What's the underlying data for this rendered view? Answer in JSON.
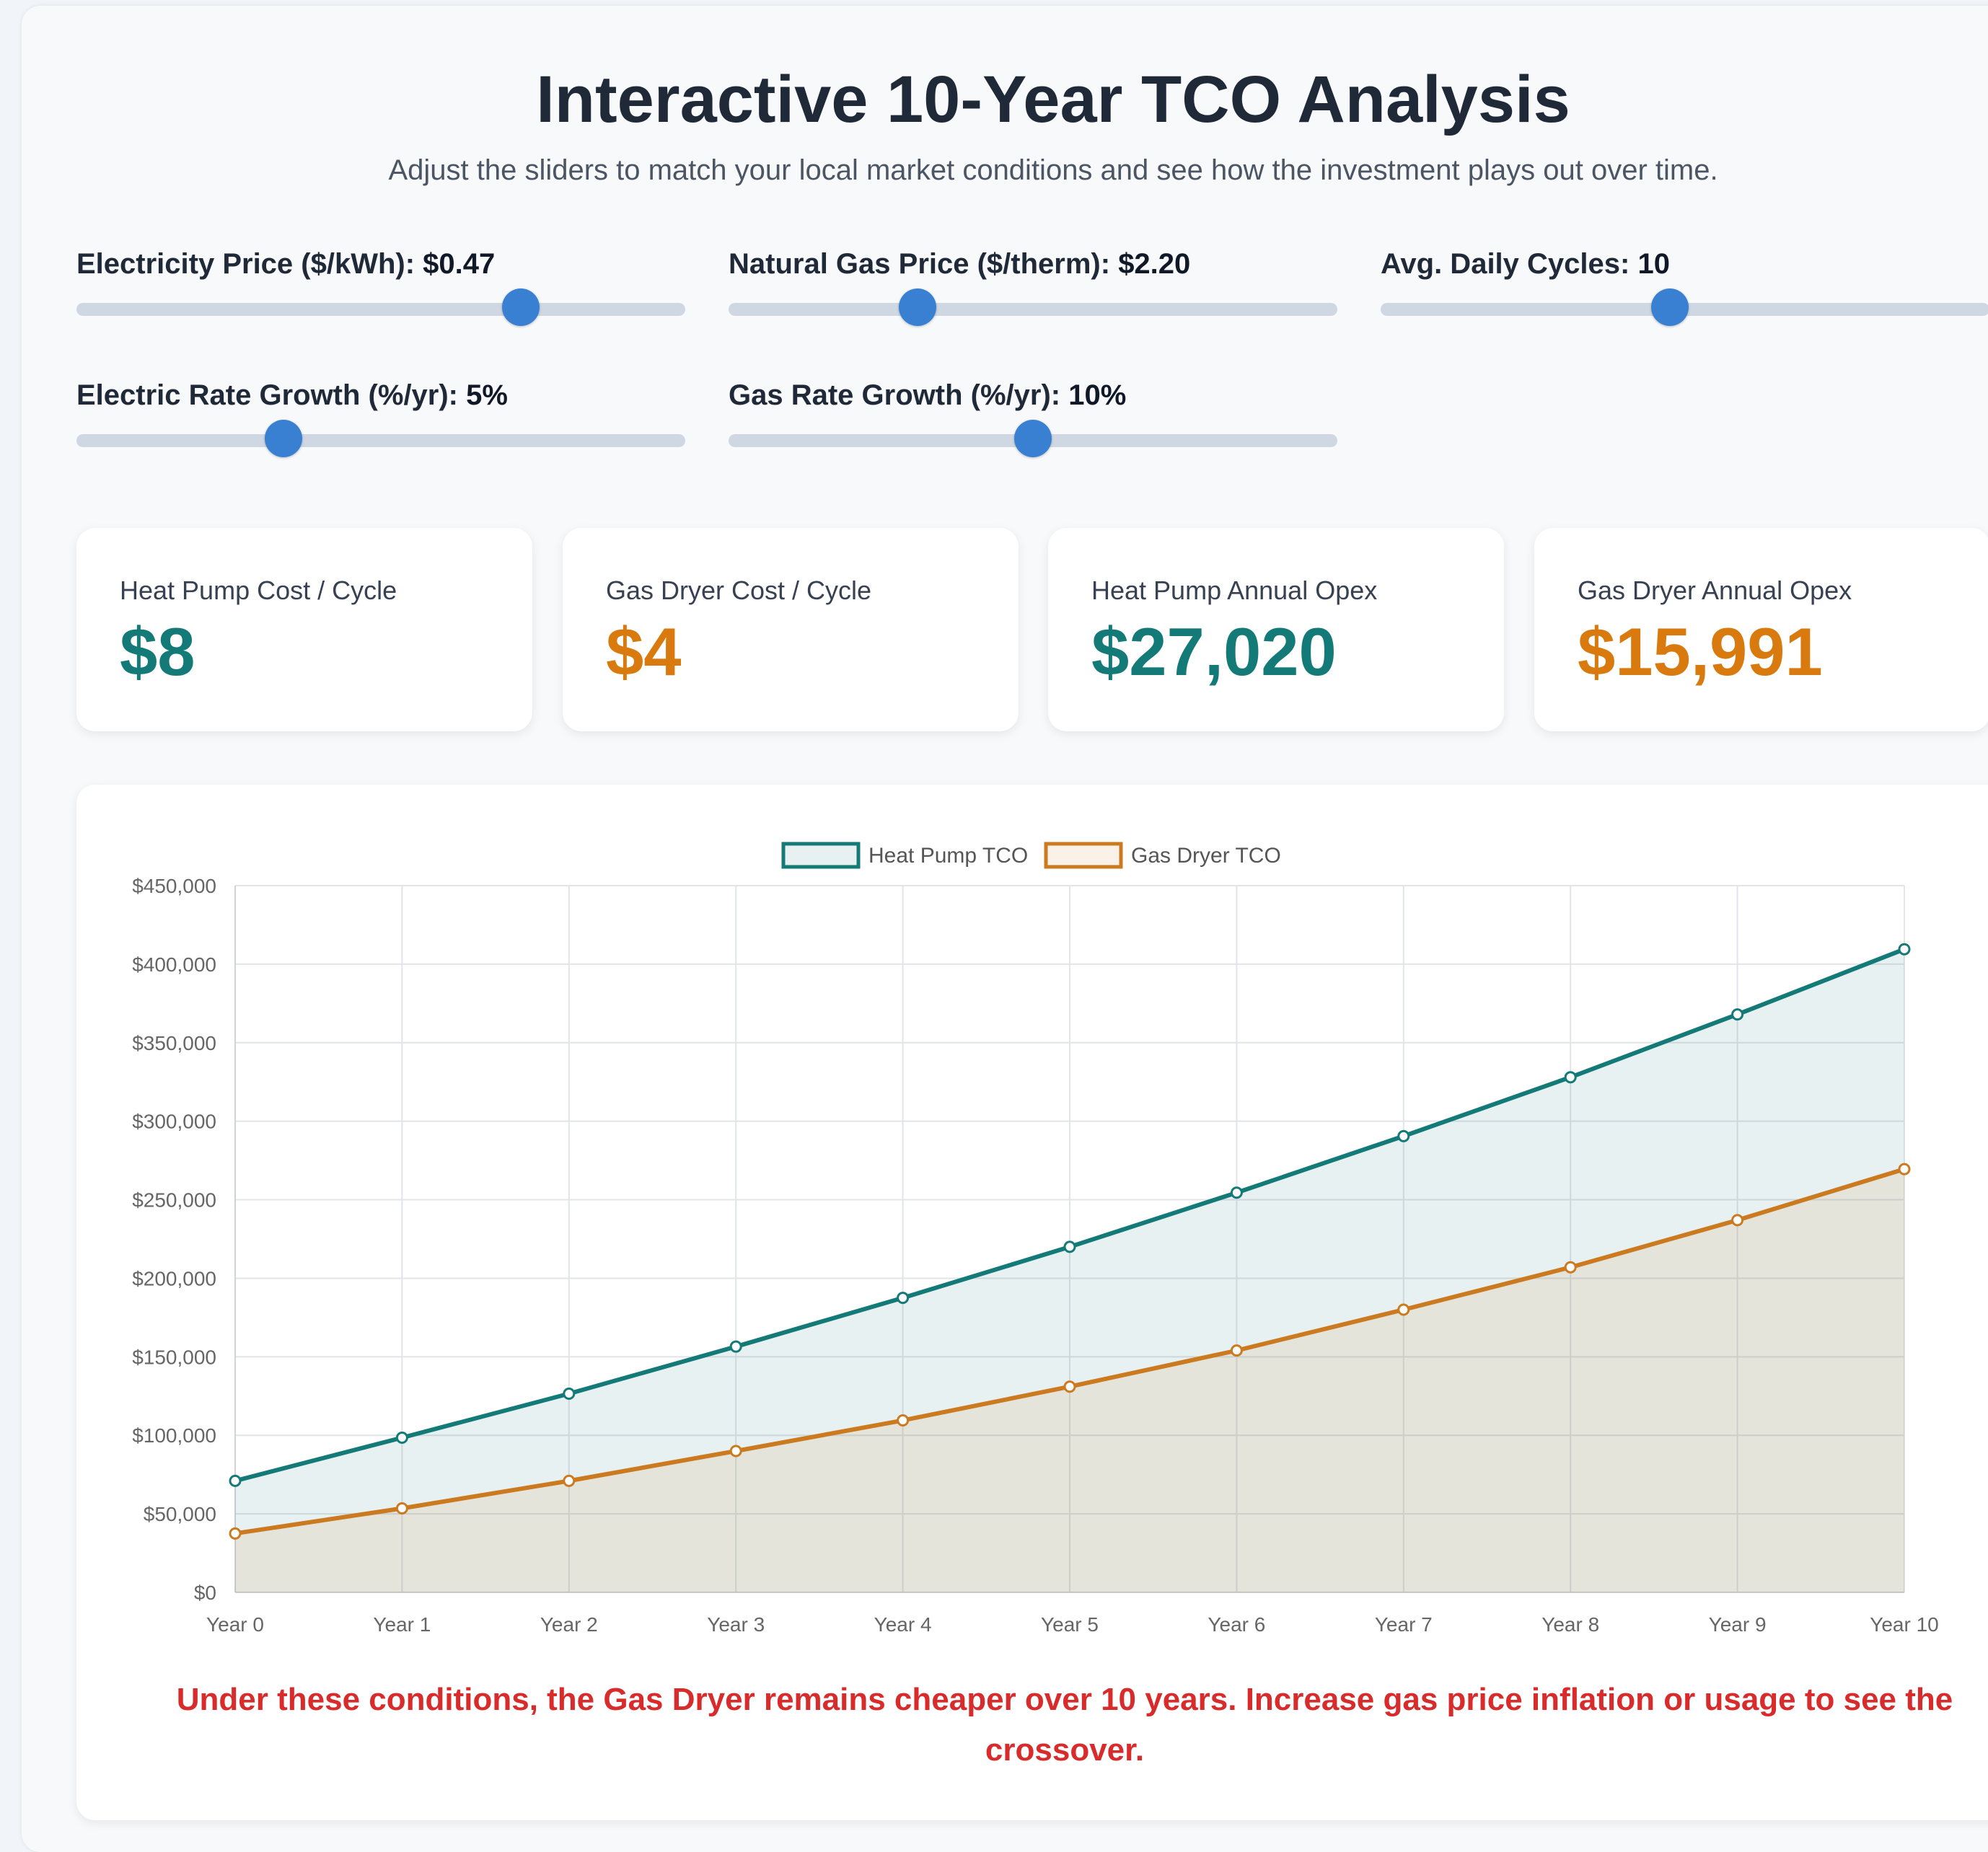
{
  "header": {
    "title": "Interactive 10-Year TCO Analysis",
    "subtitle": "Adjust the sliders to match your local market conditions and see how the investment plays out over time."
  },
  "controls": [
    {
      "label": "Electricity Price ($/kWh):",
      "value": "$0.47",
      "fraction": 0.73
    },
    {
      "label": "Natural Gas Price ($/therm):",
      "value": "$2.20",
      "fraction": 0.31
    },
    {
      "label": "Avg. Daily Cycles:",
      "value": "10",
      "fraction": 0.475
    },
    {
      "label": "Electric Rate Growth (%/yr):",
      "value": "5%",
      "fraction": 0.34
    },
    {
      "label": "Gas Rate Growth (%/yr):",
      "value": "10%",
      "fraction": 0.5
    }
  ],
  "cards": [
    {
      "label": "Heat Pump Cost / Cycle",
      "value": "$8"
    },
    {
      "label": "Gas Dryer Cost / Cycle",
      "value": "$4"
    },
    {
      "label": "Heat Pump Annual Opex",
      "value": "$27,020"
    },
    {
      "label": "Gas Dryer Annual Opex",
      "value": "$15,991"
    }
  ],
  "colors": {
    "heat_pump": "#147a78",
    "gas_dryer": "#cc7a20",
    "warning": "#d82b2b",
    "slider": "#3a80d2"
  },
  "chart_data": {
    "type": "line",
    "categories": [
      "Year 0",
      "Year 1",
      "Year 2",
      "Year 3",
      "Year 4",
      "Year 5",
      "Year 6",
      "Year 7",
      "Year 8",
      "Year 9",
      "Year 10"
    ],
    "series": [
      {
        "name": "Heat Pump TCO",
        "values": [
          71000,
          98500,
          126500,
          156500,
          187500,
          220000,
          254500,
          290500,
          328000,
          368000,
          409500
        ]
      },
      {
        "name": "Gas Dryer TCO",
        "values": [
          37500,
          53500,
          71000,
          90000,
          109500,
          131000,
          154000,
          180000,
          207000,
          237000,
          269500
        ]
      }
    ],
    "ylim": [
      0,
      450000
    ],
    "ytick_labels": [
      "$0",
      "$50,000",
      "$100,000",
      "$150,000",
      "$200,000",
      "$250,000",
      "$300,000",
      "$350,000",
      "$400,000",
      "$450,000"
    ],
    "legend": "top-center",
    "grid": true,
    "fill": true
  },
  "conclusion": "Under these conditions, the Gas Dryer remains cheaper over 10 years. Increase gas price inflation or usage to see the crossover."
}
